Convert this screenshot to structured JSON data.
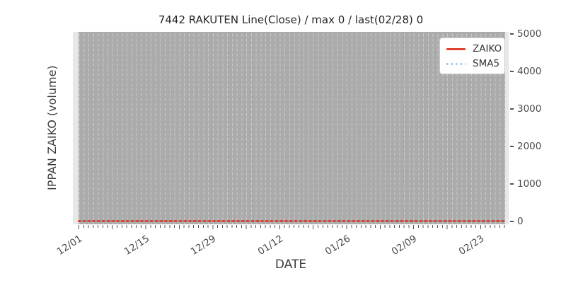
{
  "chart_data": {
    "type": "line",
    "title": "7442 RAKUTEN Line(Close) / max 0 / last(02/28) 0",
    "xlabel": "DATE",
    "ylabel": "IPPAN ZAIKO (volume)",
    "x_tick_labels": [
      "12/01",
      "12/15",
      "12/29",
      "01/12",
      "01/26",
      "02/09",
      "02/23"
    ],
    "y_tick_labels": [
      "0",
      "1000",
      "2000",
      "3000",
      "4000",
      "5000"
    ],
    "ylim": [
      0,
      5000
    ],
    "x_start": "12/01",
    "x_end": "02/28",
    "n_days": 90,
    "x_major_tick_interval_days": 14,
    "x_minor_tick_interval_days": 1,
    "grid": "daily vertical dashed gridlines over gray band, no horizontal gridlines",
    "legend_position": "upper right",
    "x": [
      "12/01",
      "12/02",
      "12/03",
      "12/04",
      "12/05",
      "12/06",
      "12/07",
      "12/08",
      "12/09",
      "12/10",
      "12/11",
      "12/12",
      "12/13",
      "12/14",
      "12/15",
      "12/16",
      "12/17",
      "12/18",
      "12/19",
      "12/20",
      "12/21",
      "12/22",
      "12/23",
      "12/24",
      "12/25",
      "12/26",
      "12/27",
      "12/28",
      "12/29",
      "12/30",
      "12/31",
      "01/01",
      "01/02",
      "01/03",
      "01/04",
      "01/05",
      "01/06",
      "01/07",
      "01/08",
      "01/09",
      "01/10",
      "01/11",
      "01/12",
      "01/13",
      "01/14",
      "01/15",
      "01/16",
      "01/17",
      "01/18",
      "01/19",
      "01/20",
      "01/21",
      "01/22",
      "01/23",
      "01/24",
      "01/25",
      "01/26",
      "01/27",
      "01/28",
      "01/29",
      "01/30",
      "01/31",
      "02/01",
      "02/02",
      "02/03",
      "02/04",
      "02/05",
      "02/06",
      "02/07",
      "02/08",
      "02/09",
      "02/10",
      "02/11",
      "02/12",
      "02/13",
      "02/14",
      "02/15",
      "02/16",
      "02/17",
      "02/18",
      "02/19",
      "02/20",
      "02/21",
      "02/22",
      "02/23",
      "02/24",
      "02/25",
      "02/26",
      "02/27",
      "02/28"
    ],
    "series": [
      {
        "name": "ZAIKO",
        "line_style": "solid",
        "color": "#e0432f",
        "values": [
          0,
          0,
          0,
          0,
          0,
          0,
          0,
          0,
          0,
          0,
          0,
          0,
          0,
          0,
          0,
          0,
          0,
          0,
          0,
          0,
          0,
          0,
          0,
          0,
          0,
          0,
          0,
          0,
          0,
          0,
          0,
          0,
          0,
          0,
          0,
          0,
          0,
          0,
          0,
          0,
          0,
          0,
          0,
          0,
          0,
          0,
          0,
          0,
          0,
          0,
          0,
          0,
          0,
          0,
          0,
          0,
          0,
          0,
          0,
          0,
          0,
          0,
          0,
          0,
          0,
          0,
          0,
          0,
          0,
          0,
          0,
          0,
          0,
          0,
          0,
          0,
          0,
          0,
          0,
          0,
          0,
          0,
          0,
          0,
          0,
          0,
          0,
          0,
          0,
          0
        ]
      },
      {
        "name": "SMA5",
        "line_style": "dotted",
        "color": "#a8cbe3",
        "values": [
          0,
          0,
          0,
          0,
          0,
          0,
          0,
          0,
          0,
          0,
          0,
          0,
          0,
          0,
          0,
          0,
          0,
          0,
          0,
          0,
          0,
          0,
          0,
          0,
          0,
          0,
          0,
          0,
          0,
          0,
          0,
          0,
          0,
          0,
          0,
          0,
          0,
          0,
          0,
          0,
          0,
          0,
          0,
          0,
          0,
          0,
          0,
          0,
          0,
          0,
          0,
          0,
          0,
          0,
          0,
          0,
          0,
          0,
          0,
          0,
          0,
          0,
          0,
          0,
          0,
          0,
          0,
          0,
          0,
          0,
          0,
          0,
          0,
          0,
          0,
          0,
          0,
          0,
          0,
          0,
          0,
          0,
          0,
          0,
          0,
          0,
          0,
          0,
          0,
          0
        ]
      }
    ],
    "stats": {
      "max": 0,
      "last_date": "02/28",
      "last_value": 0
    }
  },
  "colors": {
    "figure_background": "#ffffff",
    "plot_background": "#e7e7e7",
    "band_background": "#ababab",
    "gridline": "#c9c9c9",
    "zaiko_line": "#e0432f",
    "sma5_line": "#a8cbe3",
    "tick_text": "#4a4a4a",
    "title_text": "#262626"
  }
}
